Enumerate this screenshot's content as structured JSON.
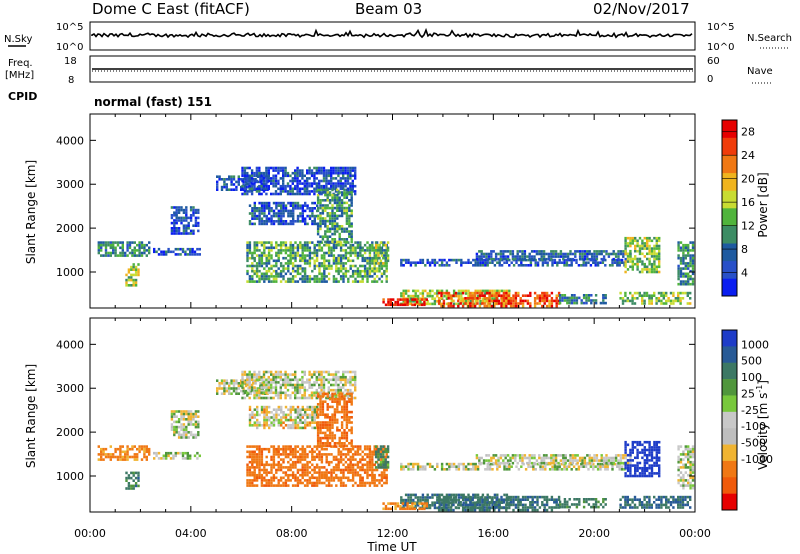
{
  "header": {
    "station": "Dome C East (fitACF)",
    "beam": "Beam 03",
    "date": "02/Nov/2017"
  },
  "top_panels": {
    "nsky_label": "N.Sky",
    "nsky_ticks": [
      "10^5",
      "10^0"
    ],
    "nsearch_label": "N.Search",
    "nsearch_ticks": [
      "10^5",
      "10^0"
    ],
    "freq_label": "Freq.",
    "freq_unit": "[MHz]",
    "freq_ticks": [
      "18",
      "8"
    ],
    "nave_label": "Nave",
    "nave_ticks": [
      "60",
      "0"
    ],
    "cpid_label": "CPID",
    "cpid_value": "normal (fast) 151"
  },
  "colors": {
    "power_scale": [
      "#0a1ef0",
      "#2850c8",
      "#1e5aa0",
      "#3c8c64",
      "#50b43c",
      "#c8dc32",
      "#f0b41e",
      "#f07814",
      "#f03c0a",
      "#e60000"
    ],
    "velocity_scale": [
      "#1e3cc8",
      "#285a96",
      "#3c7864",
      "#50963c",
      "#78c83c",
      "#c8c8c8",
      "#bebebe",
      "#f0b432",
      "#f07814",
      "#f05a0a",
      "#e60000"
    ]
  },
  "chart_data": [
    {
      "type": "heatmap",
      "title": "",
      "xlabel": "Time UT",
      "ylabel": "Slant Range [km]",
      "xlim": [
        0,
        24
      ],
      "ylim": [
        180,
        4600
      ],
      "x_ticks": [
        "00:00",
        "04:00",
        "08:00",
        "12:00",
        "16:00",
        "20:00",
        "00:00"
      ],
      "y_ticks": [
        "1000",
        "2000",
        "3000",
        "4000"
      ],
      "colorbar": {
        "label": "Power [dB]",
        "ticks": [
          "4",
          "8",
          "12",
          "16",
          "20",
          "24",
          "28"
        ],
        "range": [
          0,
          30
        ]
      },
      "regions": [
        {
          "t": [
            0.3,
            2.3
          ],
          "r": [
            1350,
            1700
          ],
          "v": 10
        },
        {
          "t": [
            1.4,
            1.9
          ],
          "r": [
            700,
            1200
          ],
          "v": 16
        },
        {
          "t": [
            2.5,
            4.4
          ],
          "r": [
            1400,
            1550
          ],
          "v": 6
        },
        {
          "t": [
            3.2,
            4.3
          ],
          "r": [
            1900,
            2500
          ],
          "v": 5
        },
        {
          "t": [
            5.0,
            7.0
          ],
          "r": [
            2900,
            3200
          ],
          "v": 5
        },
        {
          "t": [
            6.0,
            10.5
          ],
          "r": [
            2800,
            3400
          ],
          "v": 5
        },
        {
          "t": [
            6.3,
            9.0
          ],
          "r": [
            2100,
            2600
          ],
          "v": 6
        },
        {
          "t": [
            6.2,
            11.8
          ],
          "r": [
            800,
            1700
          ],
          "v": 12
        },
        {
          "t": [
            9.0,
            10.4
          ],
          "r": [
            1700,
            2900
          ],
          "v": 11
        },
        {
          "t": [
            11.3,
            11.8
          ],
          "r": [
            1200,
            1700
          ],
          "v": 14
        },
        {
          "t": [
            12.3,
            16.6
          ],
          "r": [
            300,
            600
          ],
          "v": 16
        },
        {
          "t": [
            11.6,
            13.4
          ],
          "r": [
            250,
            400
          ],
          "v": 27
        },
        {
          "t": [
            13.8,
            18.6
          ],
          "r": [
            250,
            550
          ],
          "v": 25
        },
        {
          "t": [
            18.6,
            20.5
          ],
          "r": [
            300,
            500
          ],
          "v": 9
        },
        {
          "t": [
            21.0,
            23.8
          ],
          "r": [
            300,
            550
          ],
          "v": 14
        },
        {
          "t": [
            12.3,
            21.2
          ],
          "r": [
            1150,
            1300
          ],
          "v": 6
        },
        {
          "t": [
            15.3,
            21.4
          ],
          "r": [
            1300,
            1500
          ],
          "v": 7
        },
        {
          "t": [
            21.2,
            22.6
          ],
          "r": [
            1000,
            1800
          ],
          "v": 14
        },
        {
          "t": [
            23.3,
            23.9
          ],
          "r": [
            700,
            1700
          ],
          "v": 10
        }
      ]
    },
    {
      "type": "heatmap",
      "title": "",
      "xlabel": "Time UT",
      "ylabel": "Slant Range [km]",
      "xlim": [
        0,
        24
      ],
      "ylim": [
        180,
        4600
      ],
      "x_ticks": [
        "00:00",
        "04:00",
        "08:00",
        "12:00",
        "16:00",
        "20:00",
        "00:00"
      ],
      "y_ticks": [
        "1000",
        "2000",
        "3000",
        "4000"
      ],
      "colorbar": {
        "label": "Velocity [m s^-1]",
        "ticks": [
          "1000",
          "500",
          "100",
          "25",
          "-25",
          "-100",
          "-500",
          "-1000"
        ],
        "range": [
          -1000,
          1000
        ]
      },
      "regions": [
        {
          "t": [
            0.3,
            2.3
          ],
          "r": [
            1350,
            1700
          ],
          "v": -150
        },
        {
          "t": [
            1.4,
            1.9
          ],
          "r": [
            700,
            1100
          ],
          "v": 180
        },
        {
          "t": [
            2.5,
            4.4
          ],
          "r": [
            1400,
            1550
          ],
          "v": 0
        },
        {
          "t": [
            3.2,
            4.3
          ],
          "r": [
            1900,
            2500
          ],
          "v": 0
        },
        {
          "t": [
            5.0,
            7.0
          ],
          "r": [
            2900,
            3200
          ],
          "v": 0
        },
        {
          "t": [
            6.0,
            10.5
          ],
          "r": [
            2800,
            3400
          ],
          "v": 0
        },
        {
          "t": [
            6.3,
            9.0
          ],
          "r": [
            2100,
            2600
          ],
          "v": -20
        },
        {
          "t": [
            6.2,
            11.8
          ],
          "r": [
            800,
            1700
          ],
          "v": -200
        },
        {
          "t": [
            9.0,
            10.4
          ],
          "r": [
            1700,
            2900
          ],
          "v": -220
        },
        {
          "t": [
            11.3,
            11.8
          ],
          "r": [
            1200,
            1700
          ],
          "v": 120
        },
        {
          "t": [
            12.3,
            16.6
          ],
          "r": [
            300,
            600
          ],
          "v": 200
        },
        {
          "t": [
            11.6,
            13.4
          ],
          "r": [
            250,
            400
          ],
          "v": -150
        },
        {
          "t": [
            13.8,
            18.6
          ],
          "r": [
            250,
            550
          ],
          "v": 220
        },
        {
          "t": [
            18.6,
            20.5
          ],
          "r": [
            300,
            500
          ],
          "v": 150
        },
        {
          "t": [
            21.0,
            23.8
          ],
          "r": [
            300,
            550
          ],
          "v": 250
        },
        {
          "t": [
            12.3,
            21.2
          ],
          "r": [
            1150,
            1300
          ],
          "v": 0
        },
        {
          "t": [
            15.3,
            21.4
          ],
          "r": [
            1300,
            1500
          ],
          "v": 0
        },
        {
          "t": [
            21.2,
            22.6
          ],
          "r": [
            1000,
            1800
          ],
          "v": 700
        },
        {
          "t": [
            23.3,
            23.9
          ],
          "r": [
            700,
            1700
          ],
          "v": 0
        }
      ]
    }
  ]
}
